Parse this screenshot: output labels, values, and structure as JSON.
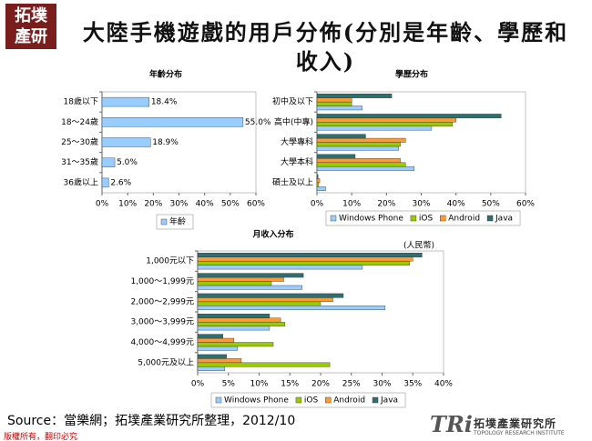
{
  "header": {
    "title": "大陸手機遊戲的用戶分佈(分別是年齡、學歷和收入)",
    "logo": [
      "拓墣",
      "產研"
    ]
  },
  "footer": {
    "source": "Source：當樂網；拓墣產業研究所整理，2012/10",
    "copyright": "版權所有，翻印必究",
    "brand": "TRi",
    "brand_name": "拓墣產業研究所",
    "brand_en": "TOPOLOGY RESEARCH INSTITUTE"
  },
  "chart_data": [
    {
      "type": "bar",
      "orientation": "horizontal",
      "title": "年齡分布",
      "categories": [
        "18歲以下",
        "18～24歲",
        "25～30歲",
        "31～35歲",
        "36歲以上"
      ],
      "series": [
        {
          "name": "年齡",
          "color": "#99ccff",
          "values": [
            18.4,
            55.0,
            18.9,
            5.0,
            2.6
          ],
          "value_labels": [
            "18.4%",
            "55.0%",
            "18.9%",
            "5.0%",
            "2.6%"
          ]
        }
      ],
      "xlim": [
        0,
        60
      ],
      "xticks": [
        {
          "value": 0,
          "label": "0%"
        },
        {
          "value": 10,
          "label": "10%"
        },
        {
          "value": 20,
          "label": "20%"
        },
        {
          "value": 30,
          "label": "30%"
        },
        {
          "value": 40,
          "label": "40%"
        },
        {
          "value": 50,
          "label": "50%"
        },
        {
          "value": 60,
          "label": "60%"
        }
      ],
      "grid": false
    },
    {
      "type": "bar",
      "orientation": "horizontal",
      "title": "學歷分布",
      "categories": [
        "初中及以下",
        "高中(中專)",
        "大學專科",
        "大學本科",
        "碩士及以上"
      ],
      "series": [
        {
          "name": "Windows Phone",
          "color": "#99ccff",
          "values": [
            13,
            33,
            23.5,
            28,
            2.5
          ]
        },
        {
          "name": "iOS",
          "color": "#99cc00",
          "values": [
            10,
            39,
            24,
            25.5,
            0.5
          ]
        },
        {
          "name": "Android",
          "color": "#ff9933",
          "values": [
            10,
            40,
            25.5,
            24,
            0.8
          ]
        },
        {
          "name": "Java",
          "color": "#2f6f6f",
          "values": [
            21.5,
            53,
            14,
            11,
            0.3
          ]
        }
      ],
      "xlim": [
        0,
        60
      ],
      "xticks": [
        {
          "value": 0,
          "label": "0%"
        },
        {
          "value": 10,
          "label": "10%"
        },
        {
          "value": 20,
          "label": "20%"
        },
        {
          "value": 30,
          "label": "30%"
        },
        {
          "value": 40,
          "label": "40%"
        },
        {
          "value": 50,
          "label": "50%"
        },
        {
          "value": 60,
          "label": "60%"
        }
      ],
      "grid": false
    },
    {
      "type": "bar",
      "orientation": "horizontal",
      "title": "月收入分布",
      "annotation": "(人民幣)",
      "categories": [
        "1,000元以下",
        "1,000～1,999元",
        "2,000～2,999元",
        "3,000～3,999元",
        "4,000～4,999元",
        "5,000元及以上"
      ],
      "series": [
        {
          "name": "Windows Phone",
          "color": "#99ccff",
          "values": [
            26.8,
            17,
            30.5,
            11.7,
            6.5,
            4.4
          ]
        },
        {
          "name": "iOS",
          "color": "#99cc00",
          "values": [
            34.5,
            12,
            20,
            14.2,
            12.3,
            21.5
          ]
        },
        {
          "name": "Android",
          "color": "#ff9933",
          "values": [
            35,
            14,
            22,
            13.5,
            5.9,
            7.1
          ]
        },
        {
          "name": "Java",
          "color": "#2f6f6f",
          "values": [
            36.5,
            17.2,
            23.7,
            11.7,
            4.1,
            4.7
          ]
        }
      ],
      "xlim": [
        0,
        40
      ],
      "xticks": [
        {
          "value": 0,
          "label": "0%"
        },
        {
          "value": 5,
          "label": "5%"
        },
        {
          "value": 10,
          "label": "10%"
        },
        {
          "value": 15,
          "label": "15%"
        },
        {
          "value": 20,
          "label": "20%"
        },
        {
          "value": 25,
          "label": "25%"
        },
        {
          "value": 30,
          "label": "30%"
        },
        {
          "value": 35,
          "label": "35%"
        },
        {
          "value": 40,
          "label": "40%"
        }
      ],
      "grid": false
    }
  ]
}
